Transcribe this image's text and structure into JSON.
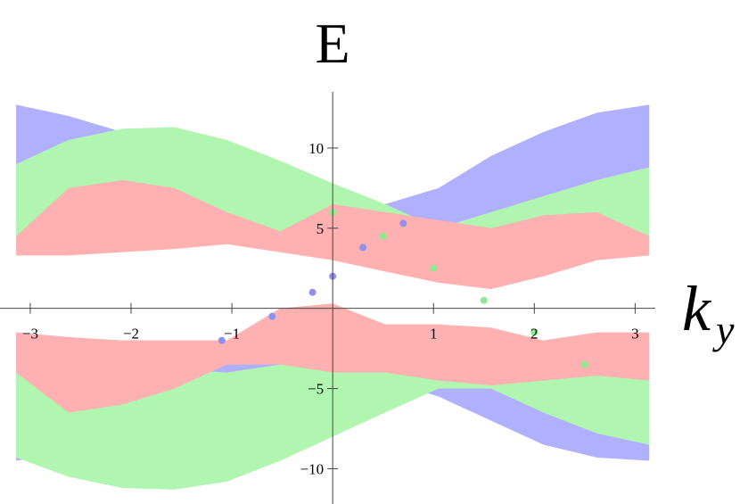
{
  "chart_data": {
    "type": "band",
    "title": "E",
    "xlabel": "k",
    "xlabel_sub": "y",
    "x": [
      -3.14,
      -2.62,
      -2.09,
      -1.57,
      -1.05,
      -0.52,
      0,
      0.52,
      1.05,
      1.57,
      2.09,
      2.62,
      3.14
    ],
    "series": [
      {
        "color": "#b0b0ff",
        "high": [
          12.7,
          12,
          11,
          10,
          8.5,
          7.5,
          7,
          6.5,
          7.5,
          9.5,
          11,
          12.2,
          12.7
        ],
        "low": [
          4,
          4.5,
          5,
          5,
          5,
          5,
          5.5,
          6,
          5,
          5,
          5,
          5,
          5
        ]
      },
      {
        "color": "#b0f5b0",
        "high": [
          9,
          10.5,
          11.2,
          11.3,
          10.5,
          9.2,
          7.8,
          6.5,
          5,
          6,
          7,
          8,
          8.8
        ],
        "low": [
          4,
          4,
          4.2,
          4.3,
          4.5,
          4.5,
          4,
          3.5,
          3.5,
          3.8,
          4.2,
          4.5,
          4.5
        ]
      },
      {
        "color": "#ffb0b0",
        "high": [
          4.5,
          7.5,
          8,
          7.5,
          6,
          4.8,
          6.5,
          6,
          5.5,
          5,
          5.8,
          6,
          4.5
        ],
        "low": [
          3.3,
          3.3,
          3.5,
          3.7,
          4,
          3.5,
          3,
          2.3,
          1.6,
          1.2,
          2,
          3,
          3.3
        ]
      },
      {
        "color": "#b0b0ff",
        "high": [
          -1.5,
          -1.8,
          -2,
          -2,
          -2,
          -2,
          -1.5,
          -2,
          -3,
          -3.5,
          -3,
          -2,
          -2
        ],
        "low": [
          -9.5,
          -9,
          -8,
          -7,
          -6,
          -5,
          -4.5,
          -4.5,
          -5.5,
          -7,
          -8.5,
          -9.3,
          -9.5
        ]
      },
      {
        "color": "#b0f5b0",
        "high": [
          -3.5,
          -3.5,
          -3.5,
          -3.8,
          -4,
          -3.5,
          -2.5,
          -3,
          -3.5,
          -3.5,
          -3.5,
          -3.8,
          -3.8
        ],
        "low": [
          -9.3,
          -10.5,
          -11.2,
          -11.3,
          -10.8,
          -9.5,
          -8,
          -6.5,
          -5,
          -5,
          -6.5,
          -7.8,
          -8.5
        ]
      },
      {
        "color": "#ffb0b0",
        "high": [
          -1.5,
          -1.8,
          -2,
          -2,
          -2,
          0,
          0.3,
          -1,
          -1,
          -1.2,
          -2,
          -1.5,
          -1.5
        ],
        "low": [
          -4,
          -6.5,
          -6,
          -5,
          -3.5,
          -3.5,
          -4,
          -4,
          -4.5,
          -4.8,
          -4.5,
          -4.2,
          -4.5
        ]
      }
    ],
    "lines": [
      {
        "color": "#9090f0",
        "x": [
          -1.1,
          -0.6,
          -0.2,
          0,
          0.3,
          0.7
        ],
        "values": [
          -2,
          -0.5,
          1,
          2,
          3.8,
          5.3
        ]
      },
      {
        "color": "#90e890",
        "x": [
          0,
          0.5,
          1,
          1.5,
          2,
          2.5
        ],
        "values": [
          6,
          4.5,
          2.5,
          0.5,
          -1.5,
          -3.5
        ]
      }
    ],
    "xlim": [
      -3.3,
      3.2
    ],
    "ylim": [
      -12.2,
      13.5
    ],
    "xticks": [
      {
        "value": -3,
        "label": "−3"
      },
      {
        "value": -2,
        "label": "−2"
      },
      {
        "value": -1,
        "label": "−1"
      },
      1,
      2,
      3
    ],
    "yticks": [
      {
        "value": -10,
        "label": "−10"
      },
      {
        "value": -5,
        "label": "−5"
      },
      5,
      10
    ]
  }
}
